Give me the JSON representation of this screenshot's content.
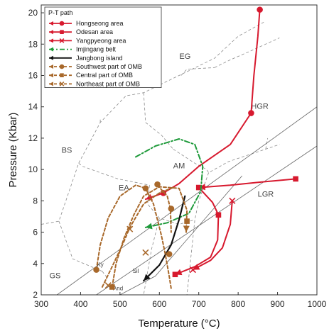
{
  "chart_data": {
    "type": "line",
    "xlabel": "Temperature (°C)",
    "ylabel": "Pressure (Kbar)",
    "xlim": [
      300,
      1000
    ],
    "ylim": [
      2,
      20.5
    ],
    "xticks": [
      300,
      400,
      500,
      600,
      700,
      800,
      900,
      1000
    ],
    "yticks": [
      2,
      4,
      6,
      8,
      10,
      12,
      14,
      16,
      18,
      20
    ],
    "legend": {
      "title": "P-T path",
      "position": "top-left",
      "entries": [
        {
          "label": "Hongseong area",
          "color": "#d7192e",
          "style": "solid",
          "marker": "circle"
        },
        {
          "label": "Odesan area",
          "color": "#d7192e",
          "style": "solid",
          "marker": "square"
        },
        {
          "label": "Yangpyeong area",
          "color": "#d7192e",
          "style": "solid",
          "marker": "x"
        },
        {
          "label": "Imjingang belt",
          "color": "#1e9a3a",
          "style": "dashdot",
          "marker": "none"
        },
        {
          "label": "Jangbong island",
          "color": "#111111",
          "style": "solid",
          "marker": "none"
        },
        {
          "label": "Southwest part of OMB",
          "color": "#a8682a",
          "style": "dashed",
          "marker": "circle"
        },
        {
          "label": "Central part of OMB",
          "color": "#a8682a",
          "style": "dashed",
          "marker": "square"
        },
        {
          "label": "Northeast part of OMB",
          "color": "#a8682a",
          "style": "dashed",
          "marker": "x"
        }
      ]
    },
    "facies_labels": [
      {
        "text": "EG",
        "x": 665,
        "y": 17.2
      },
      {
        "text": "HGR",
        "x": 855,
        "y": 14.0
      },
      {
        "text": "BS",
        "x": 365,
        "y": 11.2
      },
      {
        "text": "AM",
        "x": 650,
        "y": 10.2
      },
      {
        "text": "EA",
        "x": 510,
        "y": 8.8
      },
      {
        "text": "LGR",
        "x": 870,
        "y": 8.4
      },
      {
        "text": "GS",
        "x": 335,
        "y": 3.2
      }
    ],
    "mineral_labels": [
      {
        "text": "Ky",
        "x": 450,
        "y": 3.9
      },
      {
        "text": "Sil",
        "x": 540,
        "y": 3.5
      },
      {
        "text": "And",
        "x": 495,
        "y": 2.4
      }
    ],
    "facies_boundaries": [
      [
        [
          300,
          6.5
        ],
        [
          345,
          6.7
        ],
        [
          395,
          10.4
        ],
        [
          450,
          13.0
        ],
        [
          515,
          14.7
        ],
        [
          560,
          14.9
        ],
        [
          650,
          16.0
        ],
        [
          740,
          17.1
        ],
        [
          800,
          18.5
        ],
        [
          865,
          19.4
        ]
      ],
      [
        [
          450,
          13.0
        ],
        [
          450,
          13.3
        ]
      ],
      [
        [
          395,
          10.4
        ],
        [
          405,
          10.2
        ],
        [
          450,
          9.8
        ],
        [
          495,
          9.4
        ],
        [
          575,
          9.0
        ]
      ],
      [
        [
          560,
          14.9
        ],
        [
          565,
          13.0
        ],
        [
          605,
          12.2
        ],
        [
          635,
          11.3
        ]
      ],
      [
        [
          345,
          6.7
        ],
        [
          380,
          4.3
        ],
        [
          455,
          3.5
        ]
      ],
      [
        [
          455,
          3.5
        ],
        [
          470,
          3.0
        ]
      ],
      [
        [
          635,
          11.3
        ],
        [
          690,
          10.4
        ],
        [
          720,
          10.0
        ],
        [
          725,
          9.8
        ],
        [
          775,
          10.5
        ],
        [
          870,
          11.3
        ],
        [
          905,
          11.6
        ]
      ],
      [
        [
          725,
          9.8
        ],
        [
          700,
          8.0
        ],
        [
          690,
          6.8
        ],
        [
          670,
          2.0
        ]
      ],
      [
        [
          575,
          9.0
        ],
        [
          570,
          7.8
        ],
        [
          600,
          6.9
        ],
        [
          650,
          6.5
        ],
        [
          690,
          6.8
        ]
      ],
      [
        [
          600,
          6.9
        ],
        [
          580,
          4.9
        ],
        [
          560,
          2.0
        ]
      ],
      [
        [
          870,
          11.3
        ],
        [
          875,
          12.0
        ]
      ],
      [
        [
          655,
          16.0
        ],
        [
          670,
          16.4
        ],
        [
          740,
          16.5
        ]
      ],
      [
        [
          740,
          16.5
        ],
        [
          780,
          17.0
        ],
        [
          835,
          17.6
        ],
        [
          905,
          18.4
        ]
      ]
    ],
    "reaction_lines": [
      [
        [
          340,
          2.0
        ],
        [
          1000,
          14.0
        ]
      ],
      [
        [
          440,
          2.0
        ],
        [
          1000,
          11.5
        ]
      ],
      [
        [
          500,
          2.0
        ],
        [
          590,
          3.2
        ],
        [
          810,
          9.6
        ]
      ]
    ],
    "series": [
      {
        "name": "Hongseong area",
        "color": "#d7192e",
        "style": "solid",
        "marker": "circle",
        "path": [
          [
            855,
            20.2
          ],
          [
            850,
            18.5
          ],
          [
            840,
            16.0
          ],
          [
            833,
            13.6
          ],
          [
            780,
            11.6
          ],
          [
            700,
            10.2
          ],
          [
            650,
            9.1
          ],
          [
            610,
            8.5
          ],
          [
            565,
            8.1
          ]
        ],
        "markers": [
          [
            855,
            20.2
          ],
          [
            833,
            13.6
          ],
          [
            610,
            8.5
          ]
        ],
        "arrow_end": true
      },
      {
        "name": "Odesan area",
        "color": "#d7192e",
        "style": "solid",
        "marker": "square",
        "path": [
          [
            946,
            9.4
          ],
          [
            860,
            9.2
          ],
          [
            780,
            9.0
          ],
          [
            700,
            8.85
          ]
        ],
        "markers": [
          [
            946,
            9.4
          ],
          [
            700,
            8.85
          ]
        ],
        "arrow_end": true
      },
      {
        "name": "Odesan area",
        "color": "#d7192e",
        "style": "solid",
        "marker": "square",
        "path": [
          [
            700,
            8.85
          ],
          [
            735,
            7.9
          ],
          [
            750,
            7.1
          ],
          [
            748,
            5.5
          ],
          [
            730,
            4.4
          ],
          [
            690,
            3.8
          ],
          [
            640,
            3.3
          ]
        ],
        "markers": [
          [
            750,
            7.1
          ],
          [
            640,
            3.3
          ]
        ],
        "arrow_end": true
      },
      {
        "name": "Yangpyeong area",
        "color": "#d7192e",
        "style": "solid",
        "marker": "x",
        "path": [
          [
            785,
            8.0
          ],
          [
            780,
            6.5
          ],
          [
            760,
            5.0
          ],
          [
            730,
            4.2
          ],
          [
            685,
            3.6
          ]
        ],
        "markers": [
          [
            785,
            8.0
          ],
          [
            685,
            3.6
          ]
        ],
        "arrow_end": true
      },
      {
        "name": "Imjingang belt",
        "color": "#1e9a3a",
        "style": "dashdot",
        "marker": "none",
        "path": [
          [
            540,
            10.8
          ],
          [
            590,
            11.5
          ],
          [
            650,
            11.95
          ],
          [
            690,
            11.6
          ],
          [
            710,
            10.2
          ],
          [
            705,
            8.6
          ],
          [
            675,
            7.2
          ],
          [
            620,
            6.6
          ],
          [
            565,
            6.3
          ]
        ],
        "markers": [],
        "arrow_end": true
      },
      {
        "name": "Jangbong island",
        "color": "#111111",
        "style": "solid",
        "marker": "none",
        "path": [
          [
            665,
            8.3
          ],
          [
            650,
            6.8
          ],
          [
            630,
            5.2
          ],
          [
            600,
            3.9
          ],
          [
            560,
            2.9
          ]
        ],
        "markers": [],
        "arrow_end": true
      },
      {
        "name": "Southwest part of OMB",
        "color": "#a8682a",
        "style": "dashed",
        "marker": "circle",
        "path": [
          [
            440,
            3.6
          ],
          [
            450,
            5.2
          ],
          [
            470,
            6.9
          ],
          [
            500,
            8.3
          ],
          [
            540,
            9.0
          ],
          [
            565,
            8.8
          ],
          [
            585,
            7.8
          ],
          [
            605,
            5.8
          ],
          [
            615,
            4.6
          ],
          [
            625,
            3.2
          ],
          [
            630,
            2.4
          ]
        ],
        "markers": [
          [
            440,
            3.6
          ],
          [
            565,
            8.8
          ],
          [
            625,
            4.6
          ]
        ],
        "arrow_end": false
      },
      {
        "name": "Southwest part of OMB",
        "color": "#a8682a",
        "style": "dashed",
        "marker": "circle",
        "path": [
          [
            595,
            9.0
          ],
          [
            620,
            8.3
          ],
          [
            628,
            7.5
          ],
          [
            630,
            6.0
          ]
        ],
        "markers": [
          [
            595,
            9.05
          ],
          [
            630,
            7.5
          ]
        ],
        "arrow_end": false
      },
      {
        "name": "Central part of OMB",
        "color": "#a8682a",
        "style": "dashed",
        "marker": "square",
        "path": [
          [
            480,
            2.5
          ],
          [
            490,
            4.0
          ],
          [
            510,
            5.6
          ],
          [
            535,
            7.1
          ],
          [
            560,
            8.3
          ],
          [
            600,
            8.9
          ],
          [
            650,
            8.8
          ],
          [
            670,
            7.4
          ],
          [
            668,
            6.0
          ]
        ],
        "markers": [
          [
            480,
            2.5
          ],
          [
            670,
            6.7
          ]
        ],
        "arrow_end": true
      },
      {
        "name": "Northeast part of OMB",
        "color": "#a8682a",
        "style": "dashed",
        "marker": "x",
        "path": [
          [
            455,
            2.5
          ],
          [
            480,
            3.8
          ],
          [
            510,
            5.4
          ],
          [
            525,
            6.3
          ],
          [
            560,
            7.8
          ],
          [
            600,
            8.5
          ],
          [
            640,
            8.9
          ]
        ],
        "markers": [
          [
            470,
            2.6
          ],
          [
            525,
            6.2
          ],
          [
            565,
            4.7
          ]
        ],
        "arrow_end": false
      }
    ]
  }
}
